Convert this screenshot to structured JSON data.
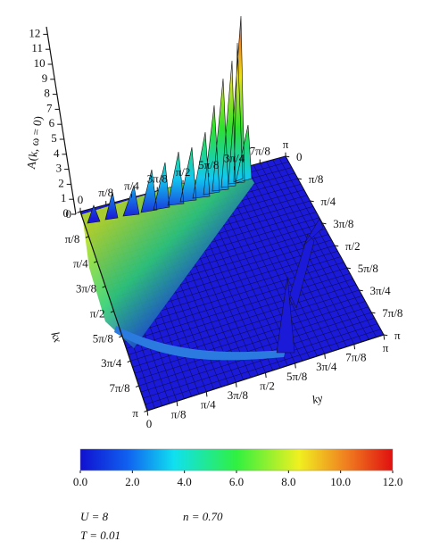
{
  "chart_data": {
    "type": "surface",
    "zlabel": "A(k, ω = 0)",
    "xlabel": "kx",
    "ylabel": "ky",
    "zlim": [
      0,
      12
    ],
    "zticks": [
      0,
      1,
      2,
      3,
      4,
      5,
      6,
      7,
      8,
      9,
      10,
      11,
      12
    ],
    "xlim": [
      0,
      3.1416
    ],
    "xticks": [
      0,
      {
        "value": 0.3927,
        "label": "π/8"
      },
      {
        "value": 0.7854,
        "label": "π/4"
      },
      {
        "value": 1.1781,
        "label": "3π/8"
      },
      {
        "value": 1.5708,
        "label": "π/2"
      },
      {
        "value": 1.9635,
        "label": "5π/8"
      },
      {
        "value": 2.3562,
        "label": "3π/4"
      },
      {
        "value": 2.7489,
        "label": "7π/8"
      },
      {
        "value": 3.1416,
        "label": "π"
      }
    ],
    "ylim": [
      0,
      3.1416
    ],
    "yticks": [
      0,
      {
        "value": 0.3927,
        "label": "π/8"
      },
      {
        "value": 0.7854,
        "label": "π/4"
      },
      {
        "value": 1.1781,
        "label": "3π/8"
      },
      {
        "value": 1.5708,
        "label": "π/2"
      },
      {
        "value": 1.9635,
        "label": "5π/8"
      },
      {
        "value": 2.3562,
        "label": "3π/4"
      },
      {
        "value": 2.7489,
        "label": "7π/8"
      },
      {
        "value": 3.1416,
        "label": "π"
      }
    ],
    "clim": [
      0,
      12
    ],
    "cticks": [
      {
        "value": 0,
        "label": "0.0"
      },
      {
        "value": 2,
        "label": "2.0"
      },
      {
        "value": 4,
        "label": "4.0"
      },
      {
        "value": 6,
        "label": "6.0"
      },
      {
        "value": 8,
        "label": "8.0"
      },
      {
        "value": 10,
        "label": "10.0"
      },
      {
        "value": 12,
        "label": "12.0"
      }
    ],
    "colormap": "jet",
    "annotations": [
      "U = 8",
      "n = 0.70",
      "T = 0.01"
    ]
  }
}
